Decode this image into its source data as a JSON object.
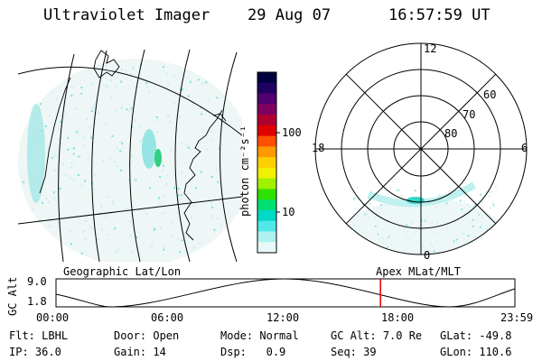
{
  "header": {
    "instrument": "Ultraviolet Imager",
    "date": "29 Aug 07",
    "time": "16:57:59 UT"
  },
  "geo_panel": {
    "label": "Geographic Lat/Lon"
  },
  "colorbar": {
    "unit_label": "photon cm⁻²s⁻¹",
    "ticks": [
      "100",
      "10"
    ],
    "colors": [
      "#000040",
      "#200060",
      "#500070",
      "#800060",
      "#b00030",
      "#e00000",
      "#ff5000",
      "#ff9900",
      "#ffd000",
      "#f0f000",
      "#a0f000",
      "#30e000",
      "#00e070",
      "#00d8c8",
      "#50e8e8",
      "#b0f0f0",
      "#e8f8f8"
    ]
  },
  "polar_panel": {
    "label": "Apex MLat/MLT",
    "mlt_labels": {
      "top": "12",
      "left": "18",
      "right": "6",
      "bottom": "0"
    },
    "lat_labels": [
      "60",
      "70",
      "80"
    ]
  },
  "timeline": {
    "ylabel": "GC Alt",
    "yticks": [
      "9.0",
      "1.8"
    ],
    "xticks": [
      "00:00",
      "06:00",
      "12:00",
      "18:00",
      "23:59"
    ],
    "marker_color": "#e00000",
    "marker_time_hours": 16.97
  },
  "status": {
    "row1": [
      {
        "key": "Flt:",
        "value": "LBHL"
      },
      {
        "key": "Door:",
        "value": "Open"
      },
      {
        "key": "Mode:",
        "value": "Normal"
      },
      {
        "key": "GC Alt:",
        "value": "7.0 Re"
      },
      {
        "key": "GLat:",
        "value": "-49.8"
      }
    ],
    "row2": [
      {
        "key": "IP:",
        "value": "36.0"
      },
      {
        "key": "Gain:",
        "value": "14"
      },
      {
        "key": "Dsp:",
        "value": "0.9"
      },
      {
        "key": "Seq:",
        "value": "39"
      },
      {
        "key": "GLon:",
        "value": "110.6"
      }
    ]
  }
}
